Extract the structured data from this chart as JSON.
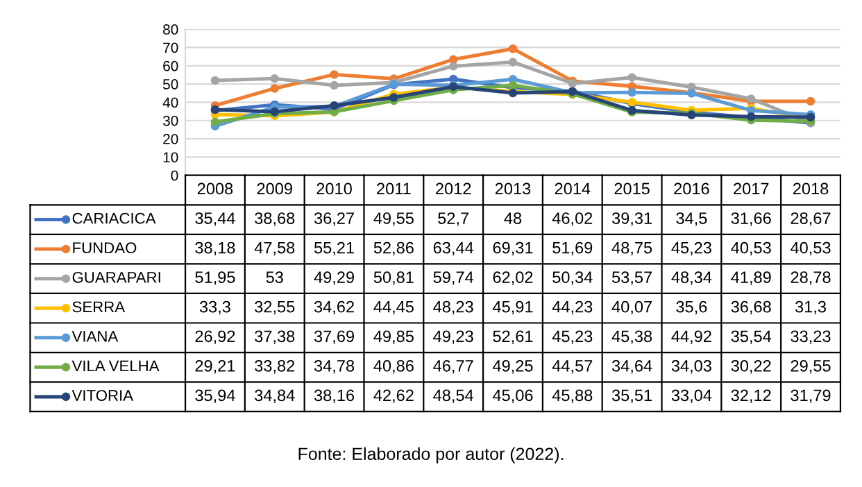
{
  "chart_data": {
    "type": "line",
    "categories": [
      "2008",
      "2009",
      "2010",
      "2011",
      "2012",
      "2013",
      "2014",
      "2015",
      "2016",
      "2017",
      "2018"
    ],
    "ylim": [
      0,
      80
    ],
    "yticks": [
      0,
      10,
      20,
      30,
      40,
      50,
      60,
      70,
      80
    ],
    "grid": "y",
    "marker": "circle",
    "legend": "left",
    "series": [
      {
        "name": "CARIACICA",
        "color": "#4472c4",
        "values": [
          35.44,
          38.68,
          36.27,
          49.55,
          52.7,
          48,
          46.02,
          39.31,
          34.5,
          31.66,
          28.67
        ],
        "value_labels": [
          "35,44",
          "38,68",
          "36,27",
          "49,55",
          "52,7",
          "48",
          "46,02",
          "39,31",
          "34,5",
          "31,66",
          "28,67"
        ]
      },
      {
        "name": "FUNDAO",
        "color": "#ed7d31",
        "values": [
          38.18,
          47.58,
          55.21,
          52.86,
          63.44,
          69.31,
          51.69,
          48.75,
          45.23,
          40.53,
          40.53
        ],
        "value_labels": [
          "38,18",
          "47,58",
          "55,21",
          "52,86",
          "63,44",
          "69,31",
          "51,69",
          "48,75",
          "45,23",
          "40,53",
          "40,53"
        ]
      },
      {
        "name": "GUARAPARI",
        "color": "#a5a5a5",
        "values": [
          51.95,
          53,
          49.29,
          50.81,
          59.74,
          62.02,
          50.34,
          53.57,
          48.34,
          41.89,
          28.78
        ],
        "value_labels": [
          "51,95",
          "53",
          "49,29",
          "50,81",
          "59,74",
          "62,02",
          "50,34",
          "53,57",
          "48,34",
          "41,89",
          "28,78"
        ]
      },
      {
        "name": "SERRA",
        "color": "#ffc000",
        "values": [
          33.3,
          32.55,
          34.62,
          44.45,
          48.23,
          45.91,
          44.23,
          40.07,
          35.6,
          36.68,
          31.3
        ],
        "value_labels": [
          "33,3",
          "32,55",
          "34,62",
          "44,45",
          "48,23",
          "45,91",
          "44,23",
          "40,07",
          "35,6",
          "36,68",
          "31,3"
        ]
      },
      {
        "name": "VIANA",
        "color": "#5b9bd5",
        "values": [
          26.92,
          37.38,
          37.69,
          49.85,
          49.23,
          52.61,
          45.23,
          45.38,
          44.92,
          35.54,
          33.23
        ],
        "value_labels": [
          "26,92",
          "37,38",
          "37,69",
          "49,85",
          "49,23",
          "52,61",
          "45,23",
          "45,38",
          "44,92",
          "35,54",
          "33,23"
        ]
      },
      {
        "name": "VILA VELHA",
        "color": "#70ad47",
        "values": [
          29.21,
          33.82,
          34.78,
          40.86,
          46.77,
          49.25,
          44.57,
          34.64,
          34.03,
          30.22,
          29.55
        ],
        "value_labels": [
          "29,21",
          "33,82",
          "34,78",
          "40,86",
          "46,77",
          "49,25",
          "44,57",
          "34,64",
          "34,03",
          "30,22",
          "29,55"
        ]
      },
      {
        "name": "VITORIA",
        "color": "#264478",
        "values": [
          35.94,
          34.84,
          38.16,
          42.62,
          48.54,
          45.06,
          45.88,
          35.51,
          33.04,
          32.12,
          31.79
        ],
        "value_labels": [
          "35,94",
          "34,84",
          "38,16",
          "42,62",
          "48,54",
          "45,06",
          "45,88",
          "35,51",
          "33,04",
          "32,12",
          "31,79"
        ]
      }
    ],
    "annotations": [
      "Fonte: Elaborado por autor (2022)."
    ]
  }
}
